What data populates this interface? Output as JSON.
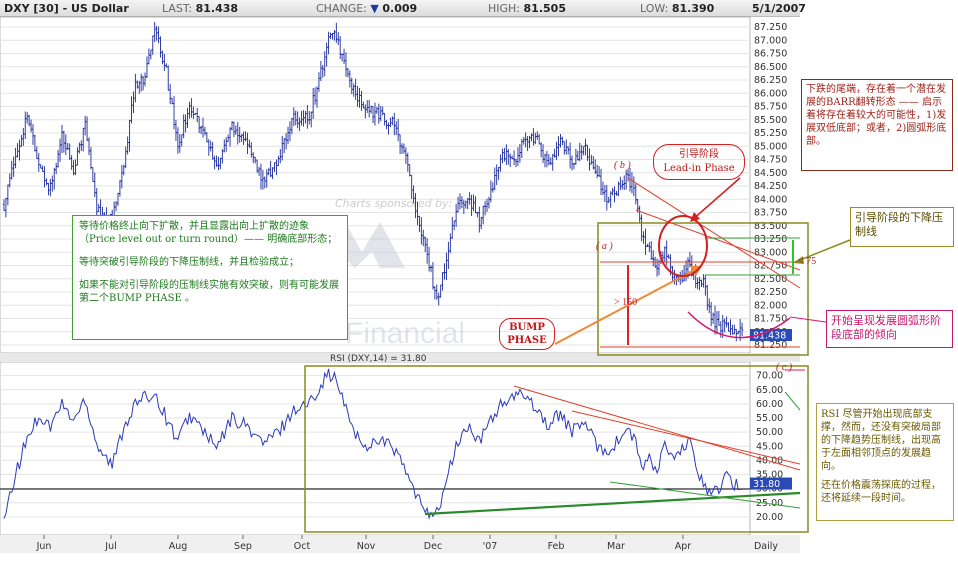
{
  "header": {
    "symbol": "DXY [30] - US Dollar",
    "last_label": "LAST:",
    "last": "81.438",
    "change_label": "CHANGE:",
    "change": "0.009",
    "high_label": "HIGH:",
    "high": "81.505",
    "low_label": "LOW:",
    "low": "81.390",
    "date": "5/1/2007"
  },
  "watermark": {
    "sponsored": "Charts sponsored by:",
    "brand": "Financial"
  },
  "rsi_title": "RSI (DXY,14) = 31.80",
  "x_axis": {
    "months": [
      "Jun",
      "Jul",
      "Aug",
      "Sep",
      "Oct",
      "Nov",
      "Dec",
      "'07",
      "Feb",
      "Mar",
      "Apr"
    ],
    "period": "Daily"
  },
  "chart_data": [
    {
      "type": "bar",
      "title": "DXY [30] - US Dollar",
      "ylim": [
        81.25,
        87.25
      ],
      "y_ticks": [
        "87.250",
        "87.000",
        "86.750",
        "86.500",
        "86.250",
        "86.000",
        "85.750",
        "85.500",
        "85.250",
        "85.000",
        "84.750",
        "84.500",
        "84.250",
        "84.000",
        "83.750",
        "83.500",
        "83.250",
        "83.000",
        "82.750",
        "82.500",
        "82.250",
        "82.000",
        "81.750",
        "81.500",
        "81.250"
      ],
      "last_value": "81.438",
      "close_anchors": [
        [
          0,
          83.9
        ],
        [
          6,
          84.8
        ],
        [
          12,
          85.6
        ],
        [
          18,
          84.6
        ],
        [
          24,
          84.2
        ],
        [
          30,
          85.2
        ],
        [
          36,
          84.6
        ],
        [
          42,
          85.4
        ],
        [
          48,
          83.8
        ],
        [
          56,
          83.6
        ],
        [
          62,
          84.6
        ],
        [
          68,
          86.2
        ],
        [
          73,
          86.3
        ],
        [
          78,
          87.2
        ],
        [
          84,
          86.4
        ],
        [
          90,
          85.0
        ],
        [
          96,
          85.8
        ],
        [
          104,
          85.2
        ],
        [
          110,
          84.6
        ],
        [
          118,
          85.4
        ],
        [
          126,
          85.1
        ],
        [
          134,
          84.3
        ],
        [
          142,
          84.8
        ],
        [
          150,
          85.5
        ],
        [
          158,
          85.6
        ],
        [
          162,
          86.1
        ],
        [
          168,
          87.0
        ],
        [
          172,
          87.1
        ],
        [
          178,
          86.3
        ],
        [
          186,
          85.7
        ],
        [
          194,
          85.6
        ],
        [
          202,
          85.4
        ],
        [
          208,
          84.8
        ],
        [
          214,
          83.6
        ],
        [
          220,
          82.8
        ],
        [
          224,
          82.1
        ],
        [
          228,
          82.7
        ],
        [
          234,
          83.8
        ],
        [
          240,
          84.1
        ],
        [
          246,
          83.6
        ],
        [
          252,
          84.1
        ],
        [
          258,
          84.9
        ],
        [
          264,
          84.7
        ],
        [
          270,
          85.2
        ],
        [
          276,
          85.1
        ],
        [
          282,
          84.6
        ],
        [
          288,
          85.1
        ],
        [
          294,
          84.7
        ],
        [
          300,
          85.0
        ],
        [
          306,
          84.5
        ],
        [
          312,
          84.0
        ],
        [
          318,
          84.2
        ],
        [
          322,
          84.4
        ],
        [
          326,
          84.2
        ],
        [
          330,
          83.4
        ],
        [
          334,
          83.0
        ],
        [
          338,
          82.7
        ],
        [
          342,
          83.0
        ],
        [
          346,
          82.6
        ],
        [
          350,
          82.5
        ],
        [
          354,
          82.8
        ],
        [
          358,
          82.5
        ],
        [
          362,
          82.4
        ],
        [
          366,
          81.8
        ],
        [
          370,
          81.6
        ],
        [
          374,
          81.6
        ],
        [
          378,
          81.5
        ],
        [
          382,
          81.45
        ]
      ]
    },
    {
      "type": "line",
      "title": "RSI (DXY,14) = 31.80",
      "ylim": [
        15,
        72
      ],
      "y_ticks": [
        "70.00",
        "65.00",
        "60.00",
        "55.00",
        "50.00",
        "45.00",
        "40.00",
        "35.00",
        "30.00",
        "25.00",
        "20.00"
      ],
      "last_value": "31.80",
      "rsi_anchors": [
        [
          0,
          18
        ],
        [
          6,
          35
        ],
        [
          12,
          48
        ],
        [
          18,
          56
        ],
        [
          24,
          52
        ],
        [
          30,
          60
        ],
        [
          36,
          54
        ],
        [
          42,
          62
        ],
        [
          48,
          46
        ],
        [
          56,
          38
        ],
        [
          62,
          52
        ],
        [
          68,
          60
        ],
        [
          73,
          62
        ],
        [
          78,
          64
        ],
        [
          84,
          55
        ],
        [
          90,
          47
        ],
        [
          96,
          56
        ],
        [
          104,
          50
        ],
        [
          110,
          44
        ],
        [
          118,
          55
        ],
        [
          126,
          52
        ],
        [
          134,
          46
        ],
        [
          142,
          50
        ],
        [
          150,
          58
        ],
        [
          158,
          60
        ],
        [
          162,
          65
        ],
        [
          168,
          71
        ],
        [
          172,
          68
        ],
        [
          178,
          56
        ],
        [
          186,
          44
        ],
        [
          194,
          48
        ],
        [
          202,
          44
        ],
        [
          208,
          36
        ],
        [
          214,
          26
        ],
        [
          220,
          22
        ],
        [
          224,
          21
        ],
        [
          228,
          30
        ],
        [
          234,
          45
        ],
        [
          240,
          52
        ],
        [
          246,
          46
        ],
        [
          252,
          55
        ],
        [
          258,
          60
        ],
        [
          264,
          62
        ],
        [
          270,
          64
        ],
        [
          276,
          58
        ],
        [
          282,
          52
        ],
        [
          288,
          57
        ],
        [
          294,
          50
        ],
        [
          300,
          54
        ],
        [
          306,
          46
        ],
        [
          312,
          43
        ],
        [
          318,
          47
        ],
        [
          322,
          51
        ],
        [
          326,
          48
        ],
        [
          330,
          38
        ],
        [
          334,
          40
        ],
        [
          338,
          36
        ],
        [
          342,
          46
        ],
        [
          346,
          40
        ],
        [
          350,
          42
        ],
        [
          354,
          48
        ],
        [
          358,
          38
        ],
        [
          362,
          32
        ],
        [
          366,
          28
        ],
        [
          370,
          30
        ],
        [
          374,
          34
        ],
        [
          378,
          31
        ],
        [
          382,
          31.8
        ]
      ]
    }
  ],
  "annotations": {
    "note_left": [
      "等待价格终止向下扩散，并且显露出向上扩散的迹象（Price level out or turn round）—— 明确底部形态；",
      "等待突破引导阶段的下降压制线，并且检验成立；",
      "如果不能对引导阶段的压制线实施有效突破，则有可能发展第二个BUMP PHASE 。"
    ],
    "note_right_top": "下跌的尾端，存在着一个潜在发展的BARR翻转形态 —— 启示着将存在着较大的可能性，1)发展双低底部；或者，2)圆弧形底部。",
    "note_right_lead": "引导阶段的下降压制线",
    "note_right_round": "开始呈现发展圆弧形阶段底部的倾向",
    "note_rsi": [
      "RSI 尽管开始出现底部支撑，然而，还没有突破局部的下降趋势压制线，出现高于左面相邻顶点的发展趋向。",
      "还在价格震荡探底的过程，还将延续一段时间。"
    ],
    "lead_in_cn": "引导阶段",
    "lead_in_en": "Lead-in Phase",
    "bump_line1": "BUMP",
    "bump_line2": "PHASE",
    "label_a": "( a )",
    "label_b": "( b )",
    "label_c": "( c )",
    "label_gt150": "> 150",
    "label_lt75": "< 75"
  },
  "colors": {
    "price_line": "#1a2a9c",
    "rsi_line": "#2a3ab8",
    "trend_red": "#e0402a",
    "trend_green": "#2a8a2a",
    "annot_olive": "#8a8a20",
    "annot_magenta": "#d8186e",
    "last_box": "#2a4ab8"
  }
}
